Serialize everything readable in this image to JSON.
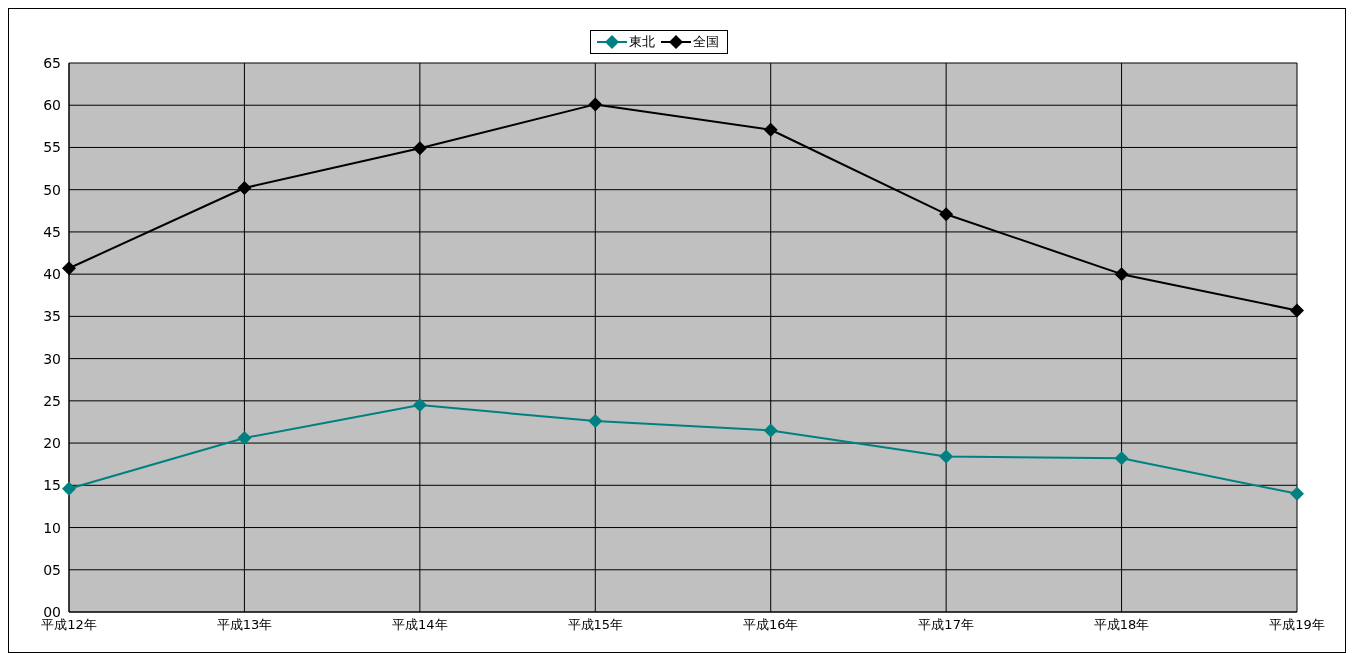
{
  "chart_data": {
    "type": "line",
    "categories": [
      "平成12年",
      "平成13年",
      "平成14年",
      "平成15年",
      "平成16年",
      "平成17年",
      "平成18年",
      "平成19年"
    ],
    "series": [
      {
        "name": "東北",
        "color": "#008080",
        "values": [
          14.6,
          20.6,
          24.5,
          22.6,
          21.5,
          18.4,
          18.2,
          14.0
        ]
      },
      {
        "name": "全国",
        "color": "#000000",
        "values": [
          40.7,
          50.2,
          54.9,
          60.1,
          57.1,
          47.1,
          40.0,
          35.7
        ]
      }
    ],
    "ylim": [
      0,
      65
    ],
    "yticks": [
      {
        "value": 0,
        "label": "00"
      },
      {
        "value": 5,
        "label": "05"
      },
      10,
      15,
      20,
      25,
      30,
      35,
      40,
      45,
      50,
      55,
      60,
      65
    ],
    "grid": true,
    "legend": "top",
    "marker": "diamond",
    "line_style": "solid"
  }
}
